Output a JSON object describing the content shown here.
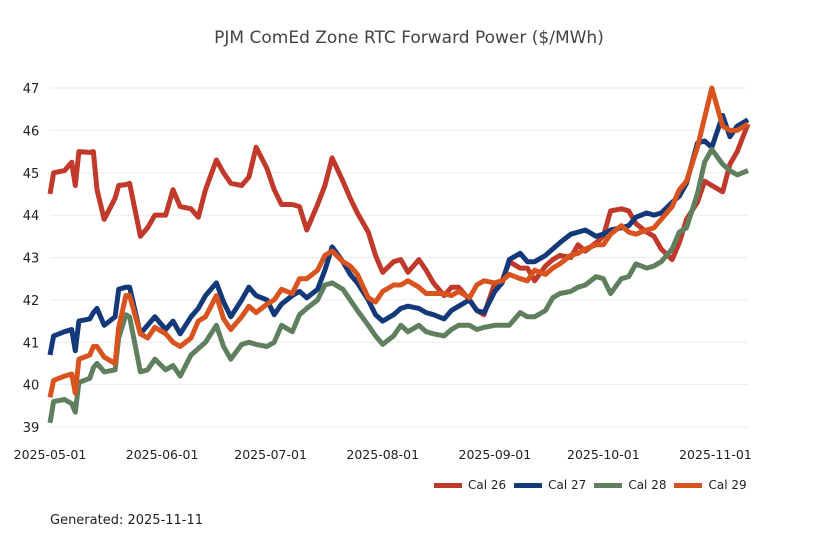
{
  "chart_data": {
    "type": "line",
    "title": "PJM ComEd Zone RTC Forward Power ($/MWh)",
    "xlabel": "",
    "ylabel": "",
    "ylim": [
      39,
      47
    ],
    "xlim": [
      "2025-05-01",
      "2025-11-10"
    ],
    "yticks": [
      39,
      40,
      41,
      42,
      43,
      44,
      45,
      46,
      47
    ],
    "xticks": [
      "2025-05-01",
      "2025-06-01",
      "2025-07-01",
      "2025-08-01",
      "2025-09-01",
      "2025-10-01",
      "2025-11-01"
    ],
    "grid": true,
    "legend_position": "bottom-right",
    "x": [
      "2025-05-01",
      "2025-05-02",
      "2025-05-05",
      "2025-05-07",
      "2025-05-08",
      "2025-05-09",
      "2025-05-12",
      "2025-05-13",
      "2025-05-14",
      "2025-05-16",
      "2025-05-19",
      "2025-05-20",
      "2025-05-22",
      "2025-05-23",
      "2025-05-26",
      "2025-05-28",
      "2025-05-30",
      "2025-06-02",
      "2025-06-04",
      "2025-06-06",
      "2025-06-09",
      "2025-06-11",
      "2025-06-13",
      "2025-06-16",
      "2025-06-18",
      "2025-06-20",
      "2025-06-23",
      "2025-06-25",
      "2025-06-27",
      "2025-06-30",
      "2025-07-02",
      "2025-07-04",
      "2025-07-07",
      "2025-07-09",
      "2025-07-11",
      "2025-07-14",
      "2025-07-16",
      "2025-07-18",
      "2025-07-21",
      "2025-07-23",
      "2025-07-25",
      "2025-07-28",
      "2025-07-30",
      "2025-08-01",
      "2025-08-04",
      "2025-08-06",
      "2025-08-08",
      "2025-08-11",
      "2025-08-13",
      "2025-08-15",
      "2025-08-18",
      "2025-08-20",
      "2025-08-22",
      "2025-08-25",
      "2025-08-27",
      "2025-08-29",
      "2025-09-01",
      "2025-09-03",
      "2025-09-05",
      "2025-09-08",
      "2025-09-10",
      "2025-09-12",
      "2025-09-15",
      "2025-09-17",
      "2025-09-19",
      "2025-09-22",
      "2025-09-24",
      "2025-09-26",
      "2025-09-29",
      "2025-10-01",
      "2025-10-03",
      "2025-10-06",
      "2025-10-08",
      "2025-10-10",
      "2025-10-13",
      "2025-10-15",
      "2025-10-17",
      "2025-10-20",
      "2025-10-22",
      "2025-10-24",
      "2025-10-27",
      "2025-10-29",
      "2025-10-31",
      "2025-11-03",
      "2025-11-05",
      "2025-11-07",
      "2025-11-10"
    ],
    "series": [
      {
        "name": "Cal 26",
        "color": "#c0392b",
        "values": [
          44.5,
          45.0,
          45.05,
          45.25,
          44.7,
          45.5,
          45.48,
          45.5,
          44.6,
          43.9,
          44.4,
          44.7,
          44.72,
          44.75,
          43.5,
          43.7,
          44.0,
          44.0,
          44.6,
          44.2,
          44.15,
          43.95,
          44.6,
          45.3,
          45.0,
          44.75,
          44.7,
          44.9,
          45.6,
          45.1,
          44.6,
          44.25,
          44.25,
          44.2,
          43.65,
          44.25,
          44.7,
          45.35,
          44.8,
          44.4,
          44.05,
          43.6,
          43.05,
          42.65,
          42.9,
          42.95,
          42.65,
          42.95,
          42.7,
          42.4,
          42.1,
          42.3,
          42.3,
          42.0,
          41.75,
          41.65,
          42.4,
          42.45,
          42.9,
          42.75,
          42.75,
          42.45,
          42.8,
          42.95,
          43.05,
          43.0,
          43.3,
          43.15,
          43.35,
          43.5,
          44.1,
          44.15,
          44.1,
          43.8,
          43.6,
          43.5,
          43.2,
          42.95,
          43.35,
          43.9,
          44.3,
          44.8,
          44.7,
          44.55,
          45.2,
          45.5,
          46.15
        ]
      },
      {
        "name": "Cal 27",
        "color": "#13397a",
        "values": [
          40.7,
          41.15,
          41.25,
          41.3,
          40.8,
          41.5,
          41.55,
          41.7,
          41.8,
          41.4,
          41.6,
          42.25,
          42.3,
          42.3,
          41.2,
          41.4,
          41.6,
          41.3,
          41.5,
          41.2,
          41.6,
          41.8,
          42.1,
          42.4,
          41.95,
          41.6,
          42.0,
          42.3,
          42.1,
          42.0,
          41.65,
          41.9,
          42.1,
          42.2,
          42.05,
          42.25,
          42.7,
          43.25,
          42.9,
          42.6,
          42.4,
          42.0,
          41.65,
          41.5,
          41.65,
          41.8,
          41.85,
          41.8,
          41.7,
          41.65,
          41.55,
          41.75,
          41.85,
          42.0,
          41.75,
          41.7,
          42.2,
          42.4,
          42.95,
          43.1,
          42.9,
          42.9,
          43.05,
          43.2,
          43.35,
          43.55,
          43.6,
          43.65,
          43.5,
          43.55,
          43.65,
          43.7,
          43.75,
          43.95,
          44.05,
          44.0,
          44.05,
          44.3,
          44.45,
          44.75,
          45.7,
          45.75,
          45.6,
          46.35,
          45.85,
          46.1,
          46.25
        ]
      },
      {
        "name": "Cal 28",
        "color": "#5f7f5f",
        "values": [
          39.1,
          39.6,
          39.65,
          39.55,
          39.35,
          40.05,
          40.15,
          40.4,
          40.5,
          40.3,
          40.35,
          41.1,
          41.65,
          41.6,
          40.3,
          40.35,
          40.6,
          40.35,
          40.45,
          40.2,
          40.7,
          40.85,
          41.0,
          41.4,
          40.9,
          40.6,
          40.95,
          41.0,
          40.95,
          40.9,
          41.0,
          41.4,
          41.25,
          41.65,
          41.8,
          42.0,
          42.35,
          42.4,
          42.25,
          42.0,
          41.75,
          41.4,
          41.15,
          40.95,
          41.15,
          41.4,
          41.25,
          41.4,
          41.25,
          41.2,
          41.15,
          41.3,
          41.4,
          41.4,
          41.3,
          41.35,
          41.4,
          41.4,
          41.4,
          41.7,
          41.6,
          41.6,
          41.75,
          42.05,
          42.15,
          42.2,
          42.3,
          42.35,
          42.55,
          42.5,
          42.15,
          42.5,
          42.55,
          42.85,
          42.75,
          42.8,
          42.9,
          43.2,
          43.6,
          43.7,
          44.5,
          45.25,
          45.55,
          45.2,
          45.05,
          44.95,
          45.05
        ]
      },
      {
        "name": "Cal 29",
        "color": "#d9531e",
        "values": [
          39.7,
          40.1,
          40.2,
          40.25,
          39.8,
          40.6,
          40.7,
          40.9,
          40.9,
          40.65,
          40.5,
          41.35,
          42.1,
          42.1,
          41.2,
          41.1,
          41.35,
          41.2,
          41.0,
          40.9,
          41.1,
          41.5,
          41.6,
          42.1,
          41.55,
          41.3,
          41.6,
          41.85,
          41.7,
          41.9,
          42.0,
          42.25,
          42.15,
          42.5,
          42.5,
          42.7,
          43.05,
          43.15,
          42.9,
          42.8,
          42.6,
          42.05,
          41.95,
          42.2,
          42.35,
          42.35,
          42.45,
          42.3,
          42.15,
          42.15,
          42.15,
          42.1,
          42.2,
          42.05,
          42.35,
          42.45,
          42.4,
          42.45,
          42.6,
          42.5,
          42.45,
          42.7,
          42.6,
          42.75,
          42.85,
          43.05,
          43.1,
          43.2,
          43.3,
          43.3,
          43.55,
          43.75,
          43.6,
          43.55,
          43.65,
          43.7,
          43.9,
          44.2,
          44.6,
          44.8,
          45.6,
          46.3,
          47.0,
          46.1,
          46.0,
          46.0,
          46.15
        ]
      }
    ]
  },
  "legend": {
    "items": [
      {
        "label": "Cal 26",
        "color": "#c0392b"
      },
      {
        "label": "Cal 27",
        "color": "#13397a"
      },
      {
        "label": "Cal 28",
        "color": "#5f7f5f"
      },
      {
        "label": "Cal 29",
        "color": "#d9531e"
      }
    ]
  },
  "footer": {
    "generated_text": "Generated: 2025-11-11"
  }
}
